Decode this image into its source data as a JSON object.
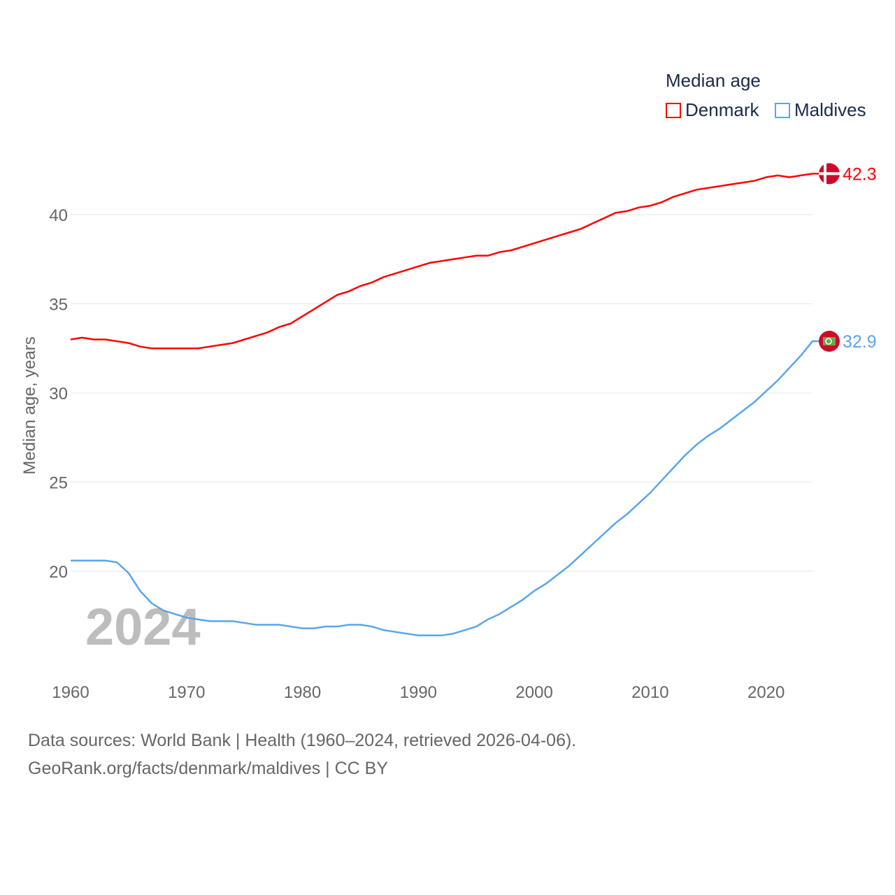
{
  "chart_data": {
    "type": "line",
    "title": "Median age",
    "ylabel": "Median age, years",
    "xlabel": "",
    "xlim": [
      1960,
      2024
    ],
    "ylim": [
      15,
      44
    ],
    "yticks": [
      20,
      25,
      30,
      35,
      40
    ],
    "xticks": [
      1960,
      1970,
      1980,
      1990,
      2000,
      2010,
      2020
    ],
    "grid": true,
    "legend_position": "top-right",
    "year_label": "2024",
    "x": [
      1960,
      1961,
      1962,
      1963,
      1964,
      1965,
      1966,
      1967,
      1968,
      1969,
      1970,
      1971,
      1972,
      1973,
      1974,
      1975,
      1976,
      1977,
      1978,
      1979,
      1980,
      1981,
      1982,
      1983,
      1984,
      1985,
      1986,
      1987,
      1988,
      1989,
      1990,
      1991,
      1992,
      1993,
      1994,
      1995,
      1996,
      1997,
      1998,
      1999,
      2000,
      2001,
      2002,
      2003,
      2004,
      2005,
      2006,
      2007,
      2008,
      2009,
      2010,
      2011,
      2012,
      2013,
      2014,
      2015,
      2016,
      2017,
      2018,
      2019,
      2020,
      2021,
      2022,
      2023,
      2024
    ],
    "series": [
      {
        "name": "Denmark",
        "color": "#ff0000",
        "end_label": "42.3",
        "values": [
          33.0,
          33.1,
          33.0,
          33.0,
          32.9,
          32.8,
          32.6,
          32.5,
          32.5,
          32.5,
          32.5,
          32.5,
          32.6,
          32.7,
          32.8,
          33.0,
          33.2,
          33.4,
          33.7,
          33.9,
          34.3,
          34.7,
          35.1,
          35.5,
          35.7,
          36.0,
          36.2,
          36.5,
          36.7,
          36.9,
          37.1,
          37.3,
          37.4,
          37.5,
          37.6,
          37.7,
          37.7,
          37.9,
          38.0,
          38.2,
          38.4,
          38.6,
          38.8,
          39.0,
          39.2,
          39.5,
          39.8,
          40.1,
          40.2,
          40.4,
          40.5,
          40.7,
          41.0,
          41.2,
          41.4,
          41.5,
          41.6,
          41.7,
          41.8,
          41.9,
          42.1,
          42.2,
          42.1,
          42.2,
          42.3
        ]
      },
      {
        "name": "Maldives",
        "color": "#5aa5ea",
        "end_label": "32.9",
        "values": [
          20.6,
          20.6,
          20.6,
          20.6,
          20.5,
          19.9,
          18.9,
          18.2,
          17.8,
          17.6,
          17.4,
          17.3,
          17.2,
          17.2,
          17.2,
          17.1,
          17.0,
          17.0,
          17.0,
          16.9,
          16.8,
          16.8,
          16.9,
          16.9,
          17.0,
          17.0,
          16.9,
          16.7,
          16.6,
          16.5,
          16.4,
          16.4,
          16.4,
          16.5,
          16.7,
          16.9,
          17.3,
          17.6,
          18.0,
          18.4,
          18.9,
          19.3,
          19.8,
          20.3,
          20.9,
          21.5,
          22.1,
          22.7,
          23.2,
          23.8,
          24.4,
          25.1,
          25.8,
          26.5,
          27.1,
          27.6,
          28.0,
          28.5,
          29.0,
          29.5,
          30.1,
          30.7,
          31.4,
          32.1,
          32.9
        ]
      }
    ]
  },
  "footer": {
    "line1": "Data sources: World Bank | Health (1960–2024, retrieved 2026-04-06).",
    "line2": "GeoRank.org/facts/denmark/maldives | CC BY"
  }
}
